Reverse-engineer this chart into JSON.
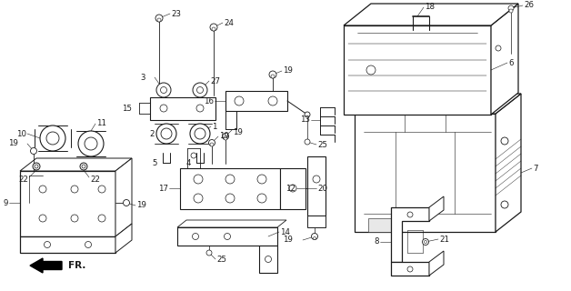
{
  "bg_color": "#ffffff",
  "line_color": "#1a1a1a",
  "fig_width": 6.28,
  "fig_height": 3.2,
  "dpi": 100
}
